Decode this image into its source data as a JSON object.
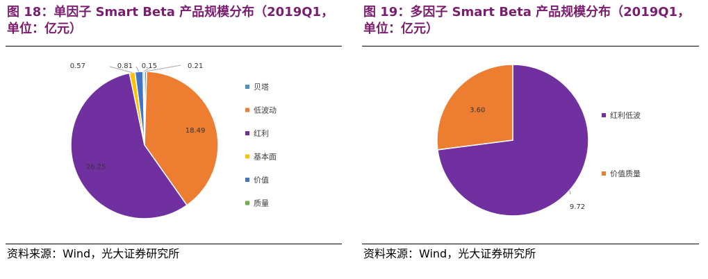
{
  "figures": [
    {
      "title_line1": "图 18：单因子 Smart Beta 产品规模分布（2019Q1，",
      "title_line2": "单位：亿元）",
      "source": "资料来源：Wind，光大证券研究所"
    },
    {
      "title_line1": "图 19：多因子 Smart Beta 产品规模分布（2019Q1，",
      "title_line2": "单位：亿元）",
      "source": "资料来源：Wind，光大证券研究所"
    }
  ],
  "chart_data": [
    {
      "type": "pie",
      "title": "单因子 Smart Beta 产品规模分布（2019Q1，单位：亿元）",
      "legend_position": "right",
      "slices": [
        {
          "name": "贝塔",
          "value": 0.21,
          "label": "0.21",
          "color": "#4a90c8"
        },
        {
          "name": "低波动",
          "value": 18.49,
          "label": "18.49",
          "color": "#ed7d31"
        },
        {
          "name": "红利",
          "value": 26.25,
          "label": "26.25",
          "color": "#7030a0"
        },
        {
          "name": "基本面",
          "value": 0.57,
          "label": "0.57",
          "color": "#ffc000"
        },
        {
          "name": "价值",
          "value": 0.81,
          "label": "0.81",
          "color": "#4472c4"
        },
        {
          "name": "质量",
          "value": 0.15,
          "label": "0.15",
          "color": "#70ad47"
        }
      ]
    },
    {
      "type": "pie",
      "title": "多因子 Smart Beta 产品规模分布（2019Q1，单位：亿元）",
      "legend_position": "right",
      "slices": [
        {
          "name": "红利低波",
          "value": 9.72,
          "label": "9.72",
          "color": "#7030a0"
        },
        {
          "name": "价值质量",
          "value": 3.6,
          "label": "3.60",
          "color": "#ed7d31"
        }
      ]
    }
  ]
}
